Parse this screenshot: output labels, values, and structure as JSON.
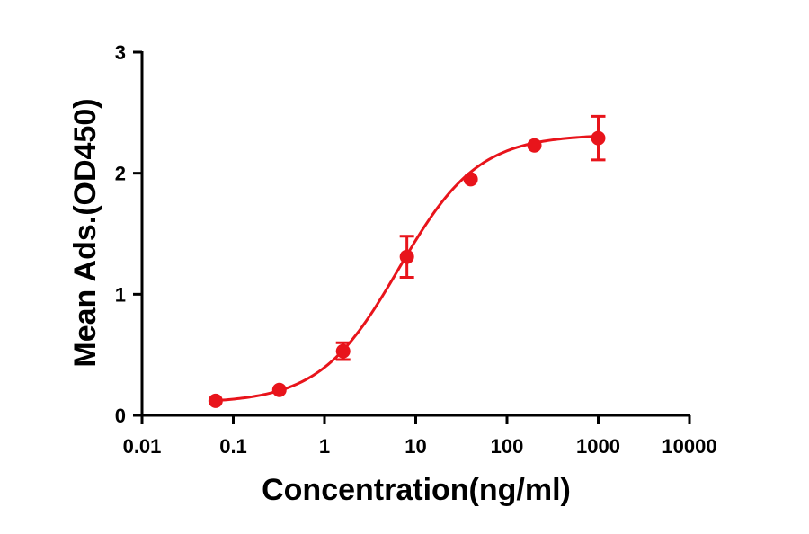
{
  "chart_data": {
    "type": "scatter",
    "title": "",
    "xlabel": "Concentration(ng/ml)",
    "ylabel": "Mean Ads.(OD450)",
    "x_scale": "log",
    "xlim": [
      0.01,
      10000
    ],
    "ylim": [
      0,
      3
    ],
    "x_ticks": [
      "0.01",
      "0.1",
      "1",
      "10",
      "100",
      "1000",
      "10000"
    ],
    "y_ticks": [
      "0",
      "1",
      "2",
      "3"
    ],
    "grid": false,
    "legend": "none",
    "color": "#e8141b",
    "series": [
      {
        "x": [
          0.064,
          0.32,
          1.6,
          8,
          40,
          200,
          1000
        ],
        "y": [
          0.12,
          0.21,
          0.53,
          1.31,
          1.95,
          2.23,
          2.29
        ],
        "error": [
          0,
          0,
          0.07,
          0.17,
          0,
          0,
          0.18
        ]
      }
    ],
    "fit_curve": {
      "model": "4PL",
      "bottom": 0.1,
      "top": 2.32,
      "ec50": 6.5,
      "hill": 1.0
    }
  }
}
